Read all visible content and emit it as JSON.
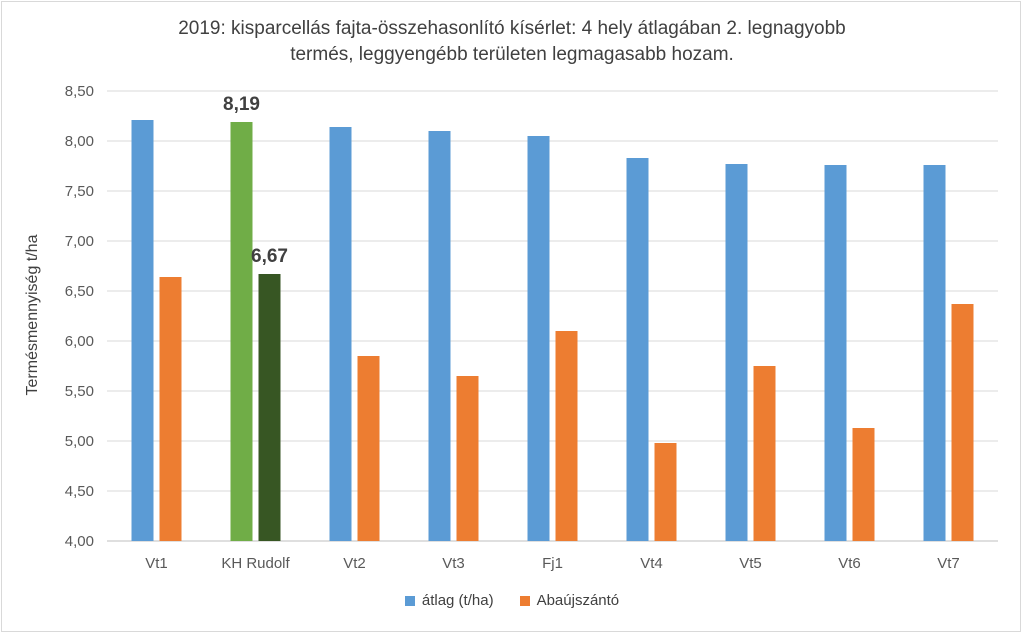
{
  "chart_data": {
    "type": "bar",
    "title": "2019: kisparcellás fajta-összehasonlító kísérlet: 4 hely átlagában 2. legnagyobb termés, leggyengébb területen legmagasabb hozam.",
    "title_lines": [
      "2019: kisparcellás fajta-összehasonlító kísérlet: 4 hely átlagában 2. legnagyobb",
      "termés, leggyengébb területen legmagasabb hozam."
    ],
    "xlabel": "",
    "ylabel": "Termésmennyiség t/ha",
    "ylim": [
      4.0,
      8.5
    ],
    "yticks": [
      4.0,
      4.5,
      5.0,
      5.5,
      6.0,
      6.5,
      7.0,
      7.5,
      8.0,
      8.5
    ],
    "ytick_labels": [
      "4,00",
      "4,50",
      "5,00",
      "5,50",
      "6,00",
      "6,50",
      "7,00",
      "7,50",
      "8,00",
      "8,50"
    ],
    "grid": true,
    "legend_position": "bottom",
    "categories": [
      "Vt1",
      "KH Rudolf",
      "Vt2",
      "Vt3",
      "Fj1",
      "Vt4",
      "Vt5",
      "Vt6",
      "Vt7"
    ],
    "series": [
      {
        "name": "átlag (t/ha)",
        "color": "#5b9bd5",
        "values": [
          8.21,
          8.19,
          8.14,
          8.1,
          8.05,
          7.83,
          7.77,
          7.76,
          7.76
        ],
        "highlight": {
          "index": 1,
          "color": "#70ad47"
        }
      },
      {
        "name": "Abaújszántó",
        "color": "#ed7d31",
        "values": [
          6.64,
          6.67,
          5.85,
          5.65,
          6.1,
          4.98,
          5.75,
          5.13,
          6.37
        ],
        "highlight": {
          "index": 1,
          "color": "#375623"
        }
      }
    ],
    "data_labels": [
      {
        "series": 0,
        "index": 1,
        "text": "8,19"
      },
      {
        "series": 1,
        "index": 1,
        "text": "6,67"
      }
    ]
  }
}
